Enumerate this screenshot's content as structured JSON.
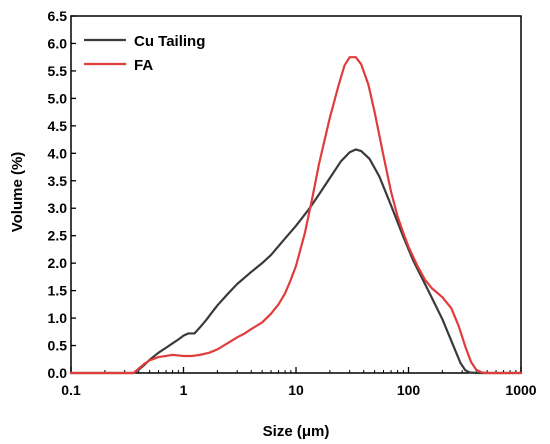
{
  "chart_data": {
    "type": "line",
    "title": "",
    "xlabel": "Size (μm)",
    "ylabel": "Volume (%)",
    "xscale": "log",
    "xlim": [
      0.1,
      1000
    ],
    "ylim": [
      0,
      6.5
    ],
    "grid": false,
    "legend_position": "top-left",
    "x_ticks": [
      {
        "value": 0.1,
        "label": "0.1"
      },
      {
        "value": 1,
        "label": "1"
      },
      {
        "value": 10,
        "label": "10"
      },
      {
        "value": 100,
        "label": "100"
      },
      {
        "value": 1000,
        "label": "1000"
      }
    ],
    "y_ticks": [
      {
        "value": 0.0,
        "label": "0.0"
      },
      {
        "value": 0.5,
        "label": "0.5"
      },
      {
        "value": 1.0,
        "label": "1.0"
      },
      {
        "value": 1.5,
        "label": "1.5"
      },
      {
        "value": 2.0,
        "label": "2.0"
      },
      {
        "value": 2.5,
        "label": "2.5"
      },
      {
        "value": 3.0,
        "label": "3.0"
      },
      {
        "value": 3.5,
        "label": "3.5"
      },
      {
        "value": 4.0,
        "label": "4.0"
      },
      {
        "value": 4.5,
        "label": "4.5"
      },
      {
        "value": 5.0,
        "label": "5.0"
      },
      {
        "value": 5.5,
        "label": "5.5"
      },
      {
        "value": 6.0,
        "label": "6.0"
      },
      {
        "value": 6.5,
        "label": "6.5"
      }
    ],
    "series": [
      {
        "name": "Cu Tailing",
        "color": "#3a3a3a",
        "points": [
          [
            0.1,
            0
          ],
          [
            0.36,
            0
          ],
          [
            0.4,
            0.06
          ],
          [
            0.45,
            0.15
          ],
          [
            0.5,
            0.24
          ],
          [
            0.6,
            0.37
          ],
          [
            0.7,
            0.46
          ],
          [
            0.8,
            0.54
          ],
          [
            0.9,
            0.61
          ],
          [
            1.0,
            0.68
          ],
          [
            1.1,
            0.72
          ],
          [
            1.25,
            0.72
          ],
          [
            1.4,
            0.83
          ],
          [
            1.6,
            0.97
          ],
          [
            1.8,
            1.11
          ],
          [
            2.0,
            1.23
          ],
          [
            2.5,
            1.45
          ],
          [
            3.0,
            1.62
          ],
          [
            4.0,
            1.84
          ],
          [
            5.0,
            2.0
          ],
          [
            6.0,
            2.15
          ],
          [
            8.0,
            2.45
          ],
          [
            10.0,
            2.68
          ],
          [
            13.0,
            2.98
          ],
          [
            16.0,
            3.25
          ],
          [
            20.0,
            3.55
          ],
          [
            25.0,
            3.85
          ],
          [
            30.0,
            4.02
          ],
          [
            34.0,
            4.07
          ],
          [
            38.0,
            4.04
          ],
          [
            45.0,
            3.9
          ],
          [
            55.0,
            3.58
          ],
          [
            70.0,
            3.05
          ],
          [
            90.0,
            2.48
          ],
          [
            110.0,
            2.05
          ],
          [
            150.0,
            1.5
          ],
          [
            200.0,
            0.98
          ],
          [
            250.0,
            0.5
          ],
          [
            290.0,
            0.18
          ],
          [
            320.0,
            0.05
          ],
          [
            350.0,
            0.01
          ],
          [
            400.0,
            0
          ],
          [
            1000.0,
            0
          ]
        ]
      },
      {
        "name": "FA",
        "color": "#e03c3c",
        "points": [
          [
            0.1,
            0
          ],
          [
            0.36,
            0
          ],
          [
            0.4,
            0.08
          ],
          [
            0.45,
            0.17
          ],
          [
            0.5,
            0.23
          ],
          [
            0.6,
            0.29
          ],
          [
            0.7,
            0.31
          ],
          [
            0.8,
            0.33
          ],
          [
            0.9,
            0.32
          ],
          [
            1.0,
            0.31
          ],
          [
            1.2,
            0.31
          ],
          [
            1.4,
            0.33
          ],
          [
            1.7,
            0.37
          ],
          [
            2.0,
            0.43
          ],
          [
            2.5,
            0.55
          ],
          [
            3.0,
            0.65
          ],
          [
            3.5,
            0.72
          ],
          [
            4.0,
            0.8
          ],
          [
            5.0,
            0.92
          ],
          [
            6.0,
            1.08
          ],
          [
            7.0,
            1.25
          ],
          [
            8.0,
            1.45
          ],
          [
            9.0,
            1.7
          ],
          [
            10.0,
            1.95
          ],
          [
            12.0,
            2.55
          ],
          [
            14.0,
            3.2
          ],
          [
            16.0,
            3.8
          ],
          [
            20.0,
            4.65
          ],
          [
            24.0,
            5.25
          ],
          [
            27.0,
            5.6
          ],
          [
            30.0,
            5.75
          ],
          [
            34.0,
            5.75
          ],
          [
            38.0,
            5.62
          ],
          [
            44.0,
            5.25
          ],
          [
            50.0,
            4.75
          ],
          [
            60.0,
            3.95
          ],
          [
            70.0,
            3.3
          ],
          [
            80.0,
            2.85
          ],
          [
            90.0,
            2.55
          ],
          [
            100.0,
            2.3
          ],
          [
            120.0,
            1.95
          ],
          [
            140.0,
            1.7
          ],
          [
            160.0,
            1.55
          ],
          [
            200.0,
            1.38
          ],
          [
            240.0,
            1.18
          ],
          [
            280.0,
            0.85
          ],
          [
            320.0,
            0.48
          ],
          [
            360.0,
            0.2
          ],
          [
            400.0,
            0.06
          ],
          [
            450.0,
            0.01
          ],
          [
            500.0,
            0
          ],
          [
            1000.0,
            0
          ]
        ]
      }
    ]
  }
}
